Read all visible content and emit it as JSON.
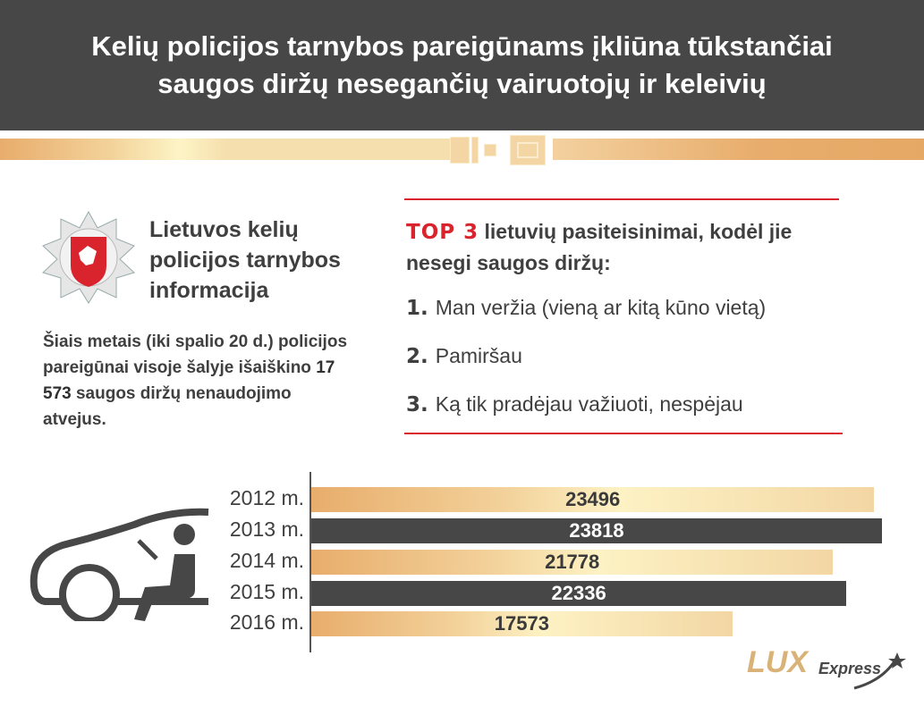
{
  "header": {
    "title": "Kelių policijos tarnybos pareigūnams įkliūna tūkstančiai saugos diržų nesegančių vairuotojų ir keleivių"
  },
  "info": {
    "title_lines": [
      "Lietuvos kelių",
      "policijos tarnybos",
      "informacija"
    ],
    "text_before": "Šiais metais (iki spalio 20 d.) policijos pareigūnai visoje šalyje išaiškino ",
    "text_bold": "17 573",
    "text_after": " saugos diržų nenaudojimo atvejus."
  },
  "top": {
    "highlight": "TOP 3",
    "heading": " lietuvių pasiteisinimai, kodėl jie nesegi saugos diržų:",
    "reasons": [
      {
        "num": "1.",
        "text": "Man veržia (vieną ar kitą kūno vietą)"
      },
      {
        "num": "2.",
        "text": "Pamiršau"
      },
      {
        "num": "3.",
        "text": "Ką tik pradėjau važiuoti, nespėjau"
      }
    ]
  },
  "brand": {
    "lux": "LUX",
    "express": "Express"
  },
  "colors": {
    "dark": "#474747",
    "red": "#d9232d",
    "gold": "#e8ad6c"
  },
  "chart_data": {
    "type": "bar",
    "orientation": "horizontal",
    "categories": [
      "2012 m.",
      "2013 m.",
      "2014 m.",
      "2015 m.",
      "2016 m."
    ],
    "values": [
      23496,
      23818,
      21778,
      22336,
      17573
    ],
    "xlim": [
      0,
      23818
    ],
    "title": "",
    "xlabel": "",
    "ylabel": ""
  }
}
